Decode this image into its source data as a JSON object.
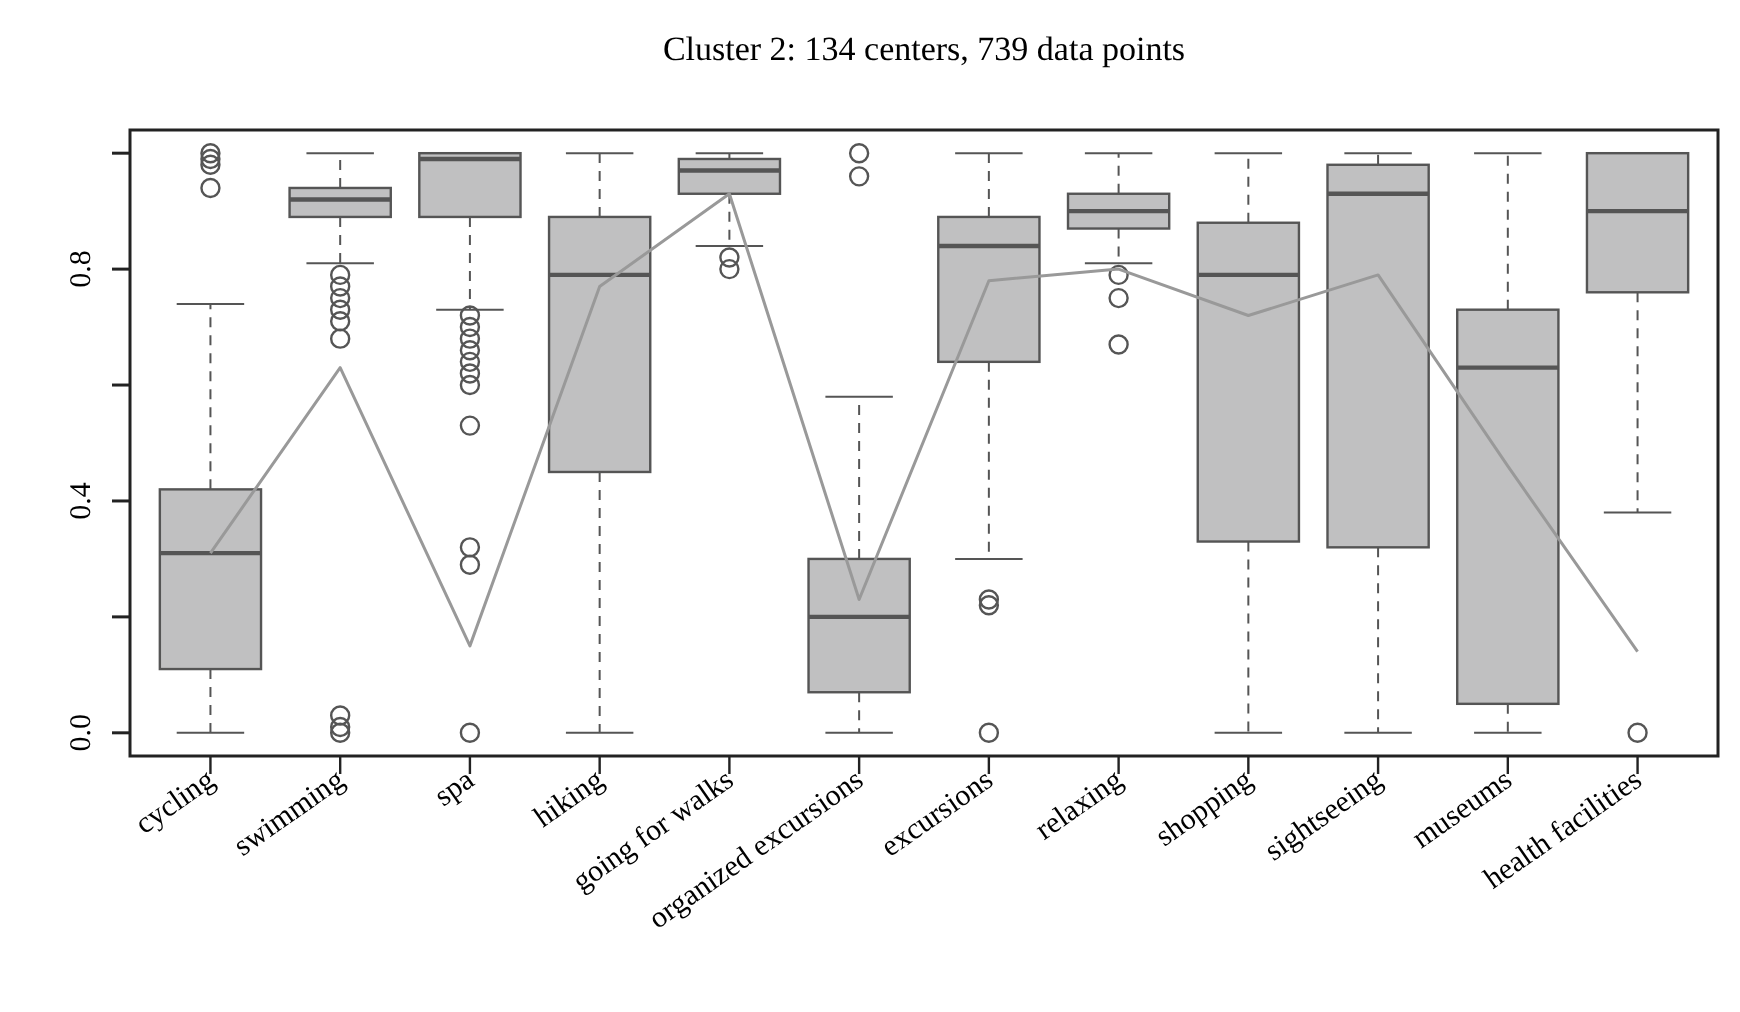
{
  "chart_data": {
    "type": "box",
    "title": "Cluster 2: 134 centers, 739 data points",
    "categories": [
      "cycling",
      "swimming",
      "spa",
      "hiking",
      "going for walks",
      "organized excursions",
      "excursions",
      "relaxing",
      "shopping",
      "sightseeing",
      "museums",
      "health facilities"
    ],
    "ylim": [
      -0.04,
      1.04
    ],
    "yticks": [
      {
        "value": 0,
        "label": "0.0"
      },
      {
        "value": 0.2,
        "label": null
      },
      0.4,
      {
        "value": 0.6,
        "label": null
      },
      0.8,
      {
        "value": 1,
        "label": null
      }
    ],
    "boxes": [
      {
        "low": 0,
        "q1": 0.11,
        "median": 0.31,
        "q3": 0.42,
        "high": 0.74,
        "outliers": [
          1.0,
          0.99,
          0.98,
          0.94
        ]
      },
      {
        "low": 0.81,
        "q1": 0.89,
        "median": 0.92,
        "q3": 0.94,
        "high": 1.0,
        "outliers": [
          0.79,
          0.77,
          0.75,
          0.73,
          0.71,
          0.68,
          0.03,
          0.01,
          0
        ]
      },
      {
        "low": 0.73,
        "q1": 0.89,
        "median": 0.99,
        "q3": 1.0,
        "high": 1.0,
        "outliers": [
          0.72,
          0.7,
          0.68,
          0.66,
          0.64,
          0.62,
          0.6,
          0.53,
          0.32,
          0.29,
          0
        ]
      },
      {
        "low": 0,
        "q1": 0.45,
        "median": 0.79,
        "q3": 0.89,
        "high": 1.0
      },
      {
        "low": 0.84,
        "q1": 0.93,
        "median": 0.97,
        "q3": 0.99,
        "high": 1.0,
        "outliers": [
          0.82,
          0.8
        ]
      },
      {
        "low": 0,
        "q1": 0.07,
        "median": 0.2,
        "q3": 0.3,
        "high": 0.58,
        "outliers": [
          1.0,
          0.96
        ]
      },
      {
        "low": 0.3,
        "q1": 0.64,
        "median": 0.84,
        "q3": 0.89,
        "high": 1.0,
        "outliers": [
          0.23,
          0.22,
          0
        ]
      },
      {
        "low": 0.81,
        "q1": 0.87,
        "median": 0.9,
        "q3": 0.93,
        "high": 1.0,
        "outliers": [
          0.79,
          0.75,
          0.67
        ]
      },
      {
        "low": 0,
        "q1": 0.33,
        "median": 0.79,
        "q3": 0.88,
        "high": 1.0
      },
      {
        "low": 0,
        "q1": 0.32,
        "median": 0.93,
        "q3": 0.98,
        "high": 1.0
      },
      {
        "low": 0,
        "q1": 0.05,
        "median": 0.63,
        "q3": 0.73,
        "high": 1.0
      },
      {
        "low": 0.38,
        "q1": 0.76,
        "median": 0.9,
        "q3": 1.0,
        "high": 1.0,
        "outliers": [
          0
        ]
      }
    ],
    "series": [
      {
        "type": "line",
        "color": "#999999",
        "values": [
          0.31,
          0.63,
          0.15,
          0.77,
          0.93,
          0.23,
          0.78,
          0.8,
          0.72,
          0.79,
          0.46,
          0.14
        ]
      }
    ]
  }
}
